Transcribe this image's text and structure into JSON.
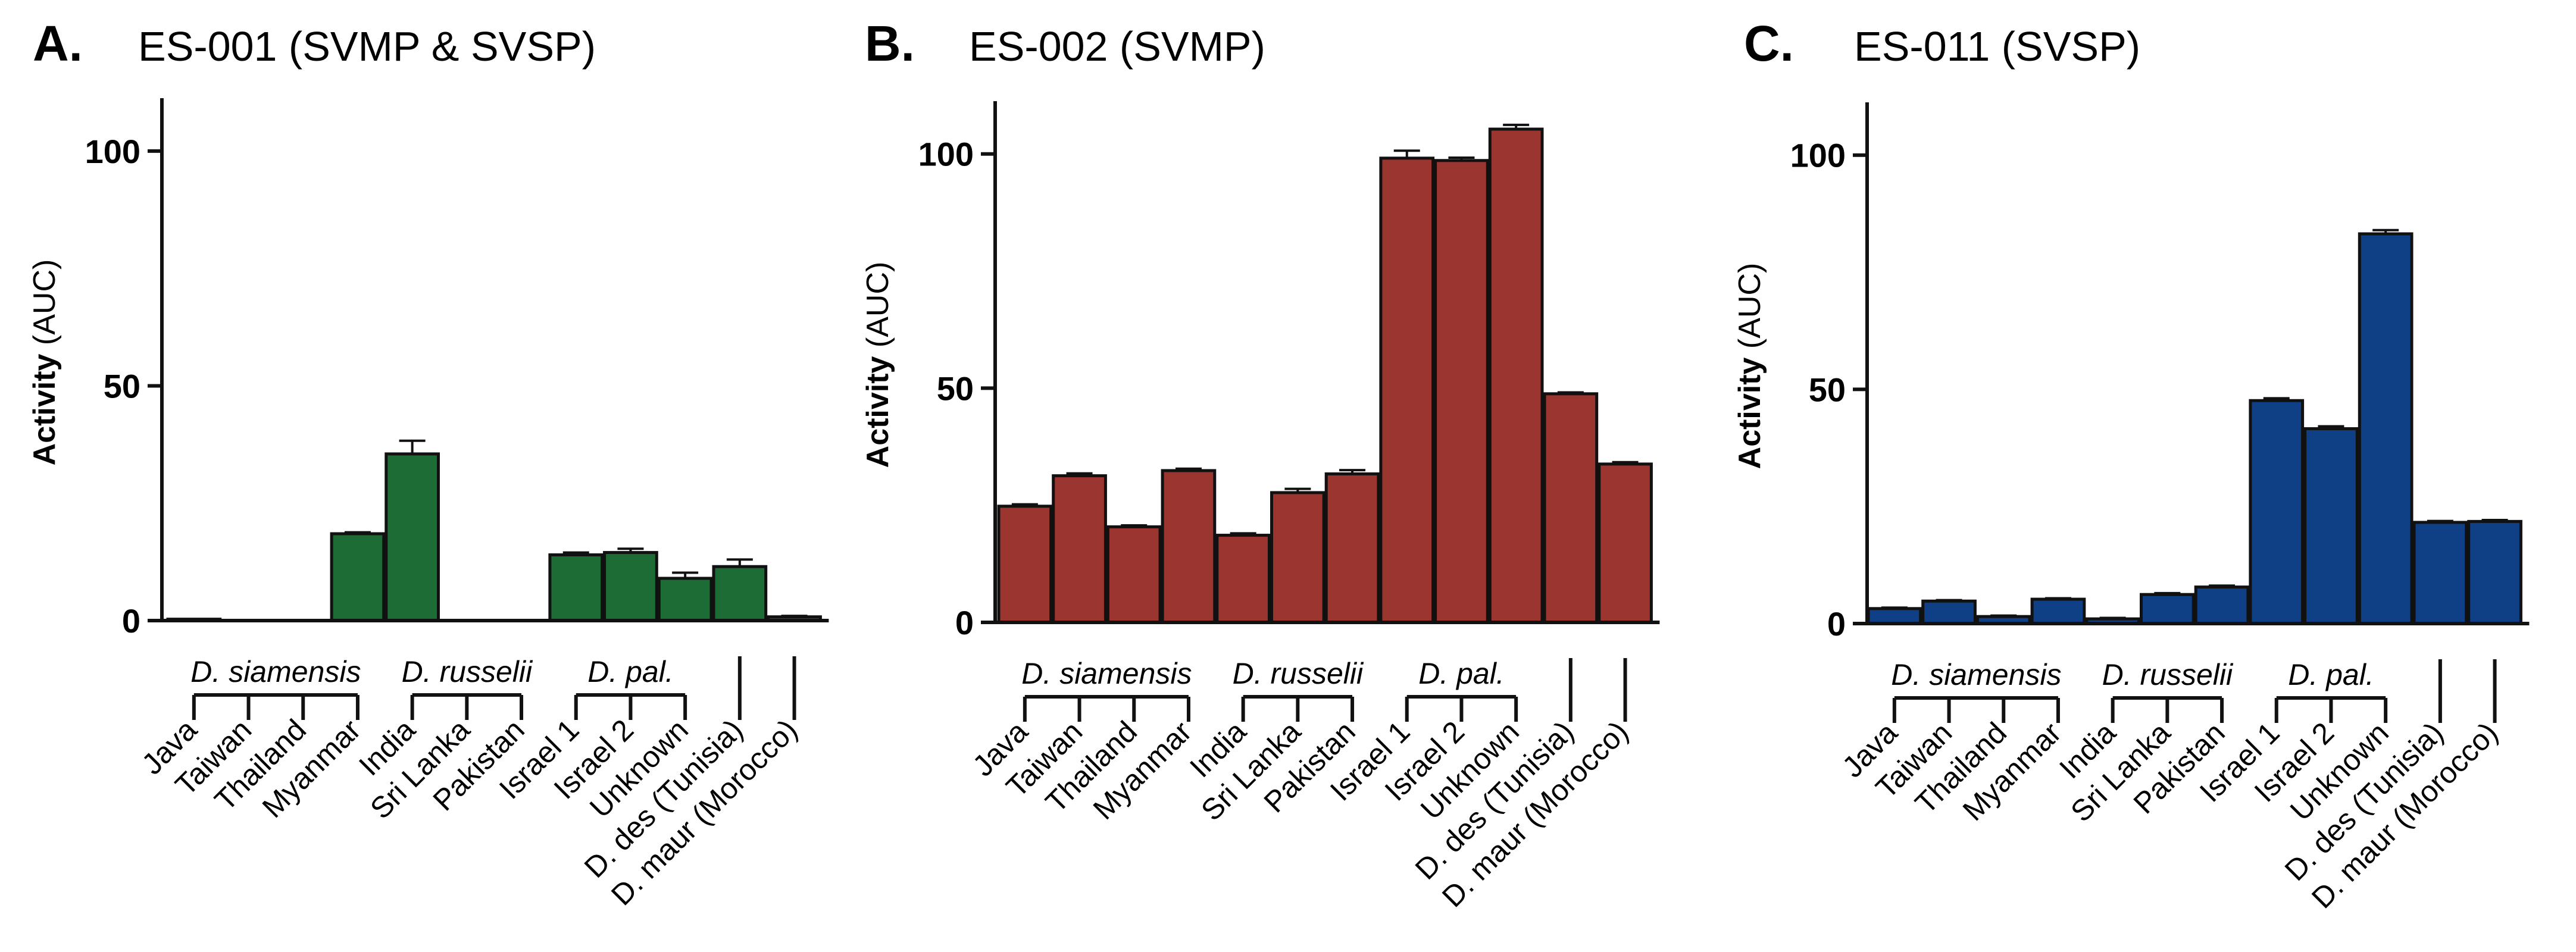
{
  "chart_data": [
    {
      "type": "bar",
      "panel_letter": "A.",
      "title": "ES-001 (SVMP & SVSP)",
      "color": "#1d6b35",
      "ylabel_bold": "Activity",
      "ylabel_rest": " (AUC)",
      "ylim": [
        0,
        110
      ],
      "yticks": [
        0,
        50,
        100
      ],
      "categories": [
        "Java",
        "Taiwan",
        "Thailand",
        "Myanmar",
        "India",
        "Sri Lanka",
        "Pakistan",
        "Israel 1",
        "Israel 2",
        "Unknown",
        "D. des (Tunisia)",
        "D. maur (Morocco)"
      ],
      "values": [
        0.3,
        0,
        0,
        18.5,
        35.5,
        0,
        0,
        14,
        14.5,
        9,
        11.5,
        0.8
      ],
      "errors": [
        0,
        0,
        0,
        0.3,
        2.8,
        0,
        0,
        0.5,
        0.8,
        1.2,
        1.5,
        0.2
      ],
      "groups": [
        {
          "label": "D. siamensis",
          "from": 0,
          "to": 3
        },
        {
          "label": "D. russelii",
          "from": 4,
          "to": 6
        },
        {
          "label": "D. pal.",
          "from": 7,
          "to": 9
        }
      ],
      "singles": [
        10,
        11
      ]
    },
    {
      "type": "bar",
      "panel_letter": "B.",
      "title": "ES-002 (SVMP)",
      "color": "#9b3530",
      "ylabel_bold": "Activity",
      "ylabel_rest": " (AUC)",
      "ylim": [
        0,
        110
      ],
      "yticks": [
        0,
        50,
        100
      ],
      "categories": [
        "Java",
        "Taiwan",
        "Thailand",
        "Myanmar",
        "India",
        "Sri Lanka",
        "Pakistan",
        "Israel 1",
        "Israel 2",
        "Unknown",
        "D. des (Tunisia)",
        "D. maur (Morocco)"
      ],
      "values": [
        24.8,
        31.3,
        20.4,
        32.4,
        18.6,
        27.7,
        31.7,
        99.1,
        98.6,
        105.3,
        48.8,
        33.8
      ],
      "errors": [
        0.4,
        0.5,
        0.3,
        0.4,
        0.4,
        0.8,
        0.8,
        1.6,
        0.6,
        0.9,
        0.3,
        0.4
      ],
      "groups": [
        {
          "label": "D. siamensis",
          "from": 0,
          "to": 3
        },
        {
          "label": "D. russelii",
          "from": 4,
          "to": 6
        },
        {
          "label": "D. pal.",
          "from": 7,
          "to": 9
        }
      ],
      "singles": [
        10,
        11
      ]
    },
    {
      "type": "bar",
      "panel_letter": "C.",
      "title": "ES-011 (SVSP)",
      "color": "#0f3f85",
      "ylabel_bold": "Activity",
      "ylabel_rest": " (AUC)",
      "ylim": [
        0,
        110
      ],
      "yticks": [
        0,
        50,
        100
      ],
      "categories": [
        "Java",
        "Taiwan",
        "Thailand",
        "Myanmar",
        "India",
        "Sri Lanka",
        "Pakistan",
        "Israel 1",
        "Israel 2",
        "Unknown",
        "D. des (Tunisia)",
        "D. maur (Morocco)"
      ],
      "values": [
        3.2,
        4.8,
        1.5,
        5.2,
        1.0,
        6.2,
        7.8,
        47.6,
        41.6,
        83.2,
        21.6,
        21.8
      ],
      "errors": [
        0.2,
        0.2,
        0.2,
        0.2,
        0.2,
        0.3,
        0.3,
        0.5,
        0.5,
        0.8,
        0.3,
        0.3
      ],
      "groups": [
        {
          "label": "D. siamensis",
          "from": 0,
          "to": 3
        },
        {
          "label": "D. russelii",
          "from": 4,
          "to": 6
        },
        {
          "label": "D. pal.",
          "from": 7,
          "to": 9
        }
      ],
      "singles": [
        10,
        11
      ]
    }
  ]
}
